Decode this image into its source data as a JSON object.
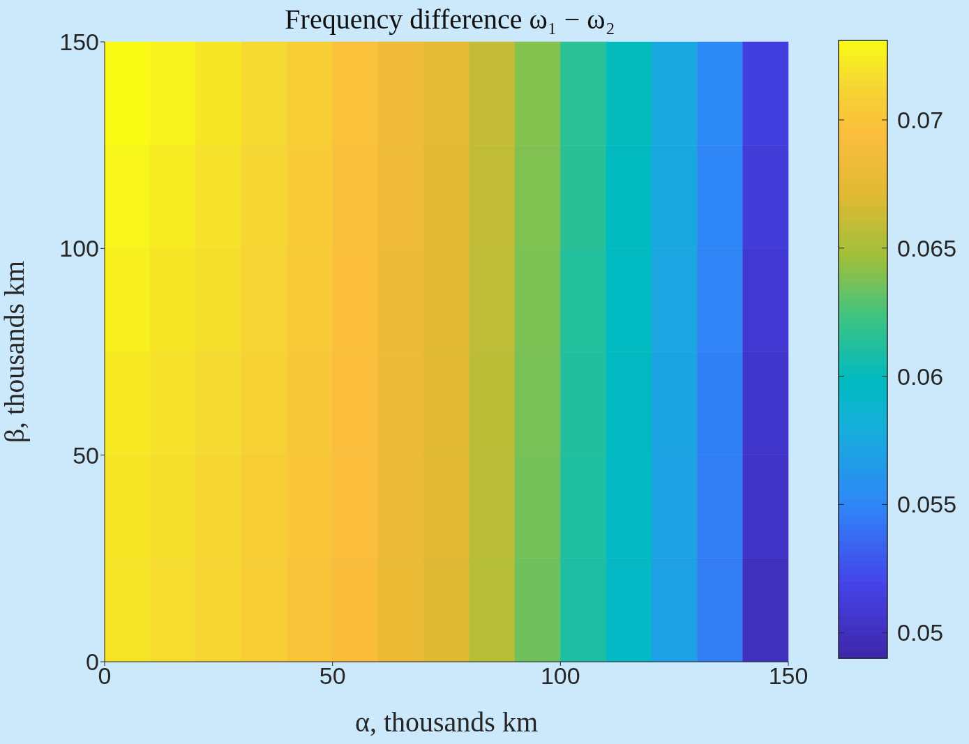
{
  "chart_data": {
    "type": "heatmap",
    "title": "Frequency difference ω₁ − ω₂",
    "xlabel": "α, thousands km",
    "ylabel": "β, thousands km",
    "x": [
      5,
      15,
      25,
      35,
      45,
      55,
      65,
      75,
      85,
      95,
      105,
      115,
      125,
      135,
      145
    ],
    "y": [
      137.5,
      112.5,
      87.5,
      62.5,
      37.5,
      12.5
    ],
    "xlim": [
      0,
      150
    ],
    "xticks": [
      0,
      50,
      100,
      150
    ],
    "ylim": [
      0,
      150
    ],
    "yticks": [
      0,
      50,
      100,
      150
    ],
    "clim": [
      0.049,
      0.0731
    ],
    "cticks": [
      0.05,
      0.055,
      0.06,
      0.065,
      0.07
    ],
    "cells": [
      [
        0.0731,
        0.0727,
        0.0721,
        0.0715,
        0.0707,
        0.0698,
        0.0685,
        0.0674,
        0.066,
        0.064,
        0.0616,
        0.06,
        0.0576,
        0.0552,
        0.0515
      ],
      [
        0.0728,
        0.0724,
        0.0719,
        0.0713,
        0.0705,
        0.0697,
        0.0684,
        0.0673,
        0.0659,
        0.0639,
        0.0615,
        0.0599,
        0.0575,
        0.055,
        0.0512
      ],
      [
        0.0725,
        0.0721,
        0.0717,
        0.0711,
        0.0704,
        0.0696,
        0.0683,
        0.0672,
        0.0658,
        0.0638,
        0.0613,
        0.0598,
        0.0573,
        0.0549,
        0.0509
      ],
      [
        0.0723,
        0.0719,
        0.0715,
        0.071,
        0.0703,
        0.0695,
        0.0682,
        0.0671,
        0.0657,
        0.0637,
        0.0612,
        0.0597,
        0.0572,
        0.0547,
        0.0506
      ],
      [
        0.0721,
        0.0717,
        0.0713,
        0.0708,
        0.0701,
        0.0694,
        0.0681,
        0.0671,
        0.0656,
        0.0636,
        0.0611,
        0.0596,
        0.0571,
        0.0546,
        0.0503
      ],
      [
        0.072,
        0.0716,
        0.0712,
        0.0707,
        0.07,
        0.0693,
        0.068,
        0.067,
        0.0655,
        0.0635,
        0.061,
        0.0595,
        0.057,
        0.0545,
        0.05
      ]
    ]
  }
}
